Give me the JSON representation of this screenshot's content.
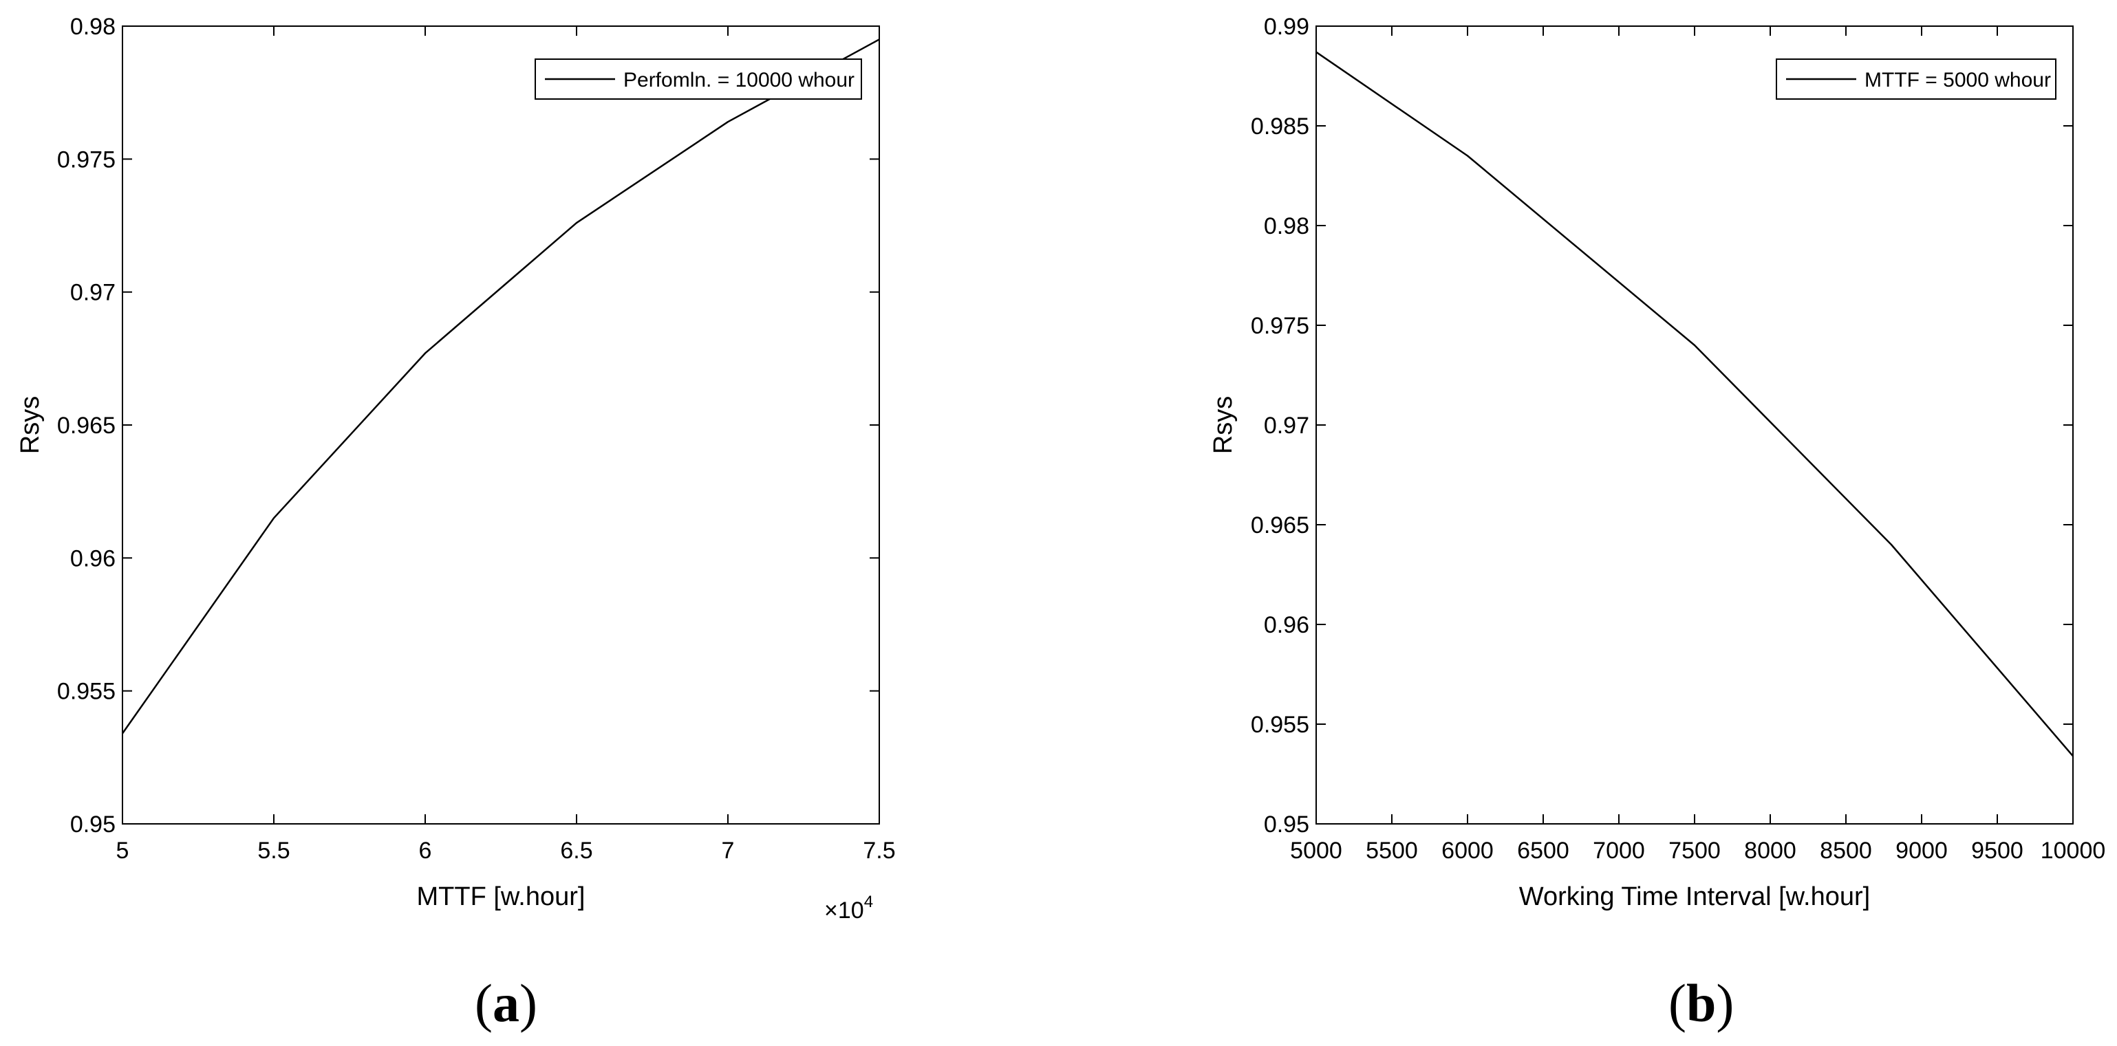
{
  "chart_data": [
    {
      "type": "line",
      "panel_label": "a",
      "xlabel": "MTTF [w.hour]",
      "ylabel": "Rsys",
      "x_exponent_base": "×10",
      "x_exponent_power": "4",
      "xlim": [
        5,
        7.5
      ],
      "ylim": [
        0.95,
        0.98
      ],
      "xticks": [
        "5",
        "5.5",
        "6",
        "6.5",
        "7",
        "7.5"
      ],
      "yticks": [
        "0.95",
        "0.955",
        "0.96",
        "0.965",
        "0.97",
        "0.975",
        "0.98"
      ],
      "grid": false,
      "legend_position": "top-right",
      "series": [
        {
          "name": "Perfomln. = 10000 whour",
          "color": "#000000",
          "x": [
            5,
            5.5,
            6,
            6.5,
            7,
            7.5
          ],
          "y": [
            0.9534,
            0.9615,
            0.9677,
            0.9726,
            0.9764,
            0.9795
          ]
        }
      ]
    },
    {
      "type": "line",
      "panel_label": "b",
      "xlabel": "Working Time Interval [w.hour]",
      "ylabel": "Rsys",
      "xlim": [
        5000,
        10000
      ],
      "ylim": [
        0.95,
        0.99
      ],
      "xticks": [
        "5000",
        "5500",
        "6000",
        "6500",
        "7000",
        "7500",
        "8000",
        "8500",
        "9000",
        "9500",
        "10000"
      ],
      "yticks": [
        "0.95",
        "0.955",
        "0.96",
        "0.965",
        "0.97",
        "0.975",
        "0.98",
        "0.985",
        "0.99"
      ],
      "grid": false,
      "legend_position": "top-right",
      "series": [
        {
          "name": "MTTF = 5000 whour",
          "color": "#000000",
          "x": [
            5000,
            6000,
            7500,
            8800,
            10000
          ],
          "y": [
            0.9887,
            0.9835,
            0.974,
            0.964,
            0.9534
          ]
        }
      ]
    }
  ]
}
